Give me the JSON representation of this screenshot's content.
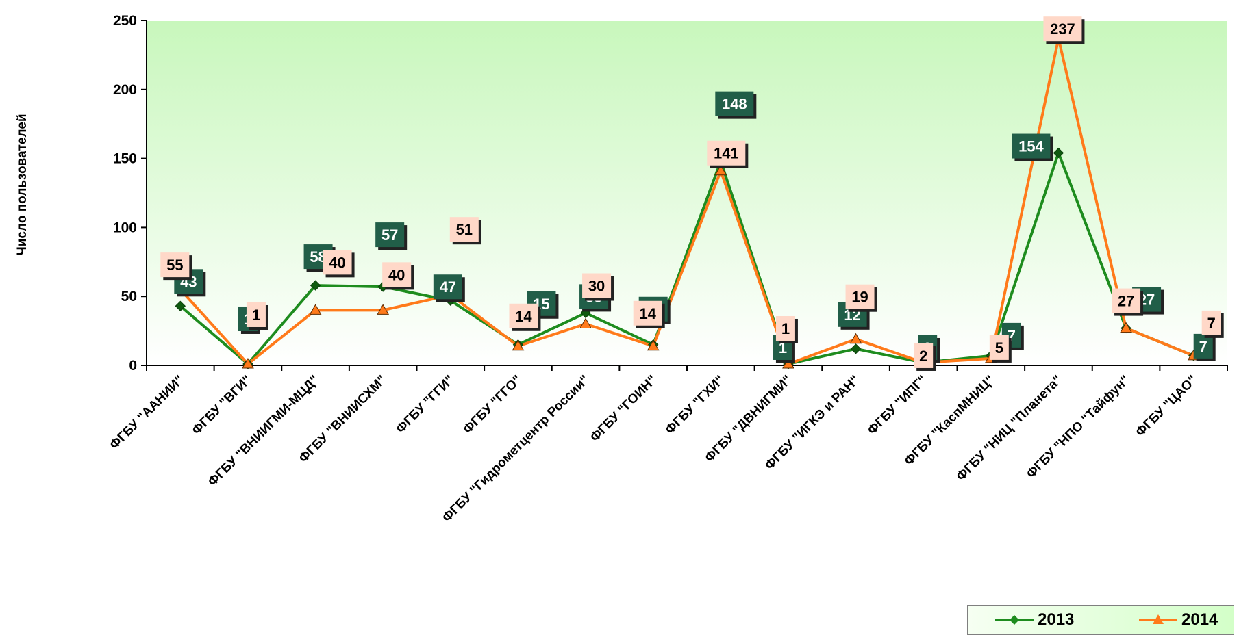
{
  "chart_data": {
    "type": "line",
    "ylabel": "Число пользователей",
    "xlabel": "",
    "ylim": [
      0,
      250
    ],
    "yticks": [
      0,
      50,
      100,
      150,
      200,
      250
    ],
    "grid": false,
    "legend_position": "bottom-right",
    "categories": [
      "ФГБУ \"ААНИИ\"",
      "ФГБУ \"ВГИ\"",
      "ФГБУ \"ВНИИГМИ-МЦД\"",
      "ФГБУ \"ВНИИСХМ\"",
      "ФГБУ \"ГГИ\"",
      "ФГБУ \"ГГО\"",
      "ФГБУ \"Гидрометцентр России\"",
      "ФГБУ \"ГОИН\"",
      "ФГБУ \"ГХИ\"",
      "ФГБУ \"ДВНИГМИ\"",
      "ФГБУ \"ИГКЭ и РАН\"",
      "ФГБУ \"ИПГ\"",
      "ФГБУ \"КаспМНИЦ\"",
      "ФГБУ \"НИЦ \"Планета\"",
      "ФГБУ \"НПО \"Тайфун\"",
      "ФГБУ \"ЦАО\""
    ],
    "series": [
      {
        "name": "2013",
        "color": "#1e8c1e",
        "label_bg": "#215e48",
        "label_color": "#ffffff",
        "marker": "diamond",
        "values": [
          43,
          1,
          58,
          57,
          47,
          15,
          38,
          15,
          148,
          1,
          12,
          2,
          7,
          154,
          27,
          7
        ]
      },
      {
        "name": "2014",
        "color": "#ff7a1a",
        "label_bg": "#ffd8c8",
        "label_color": "#000000",
        "marker": "triangle",
        "values": [
          55,
          1,
          40,
          40,
          51,
          14,
          30,
          14,
          141,
          1,
          19,
          2,
          5,
          237,
          27,
          7
        ]
      }
    ],
    "data_labels_2013": [
      "43",
      "1",
      "58",
      "57",
      "47",
      "15",
      "38",
      "15",
      "148",
      "1",
      "12",
      "2",
      "7",
      "154",
      "27",
      "7"
    ],
    "data_labels_2014": [
      "55",
      "1",
      "40",
      "40",
      "51",
      "14",
      "30",
      "14",
      "141",
      "1",
      "19",
      "2",
      "5",
      "237",
      "27",
      "7"
    ],
    "plot_background": [
      "#ffffff",
      "#c8f7bc"
    ]
  },
  "legend": {
    "items": [
      {
        "label": "2013"
      },
      {
        "label": "2014"
      }
    ]
  }
}
